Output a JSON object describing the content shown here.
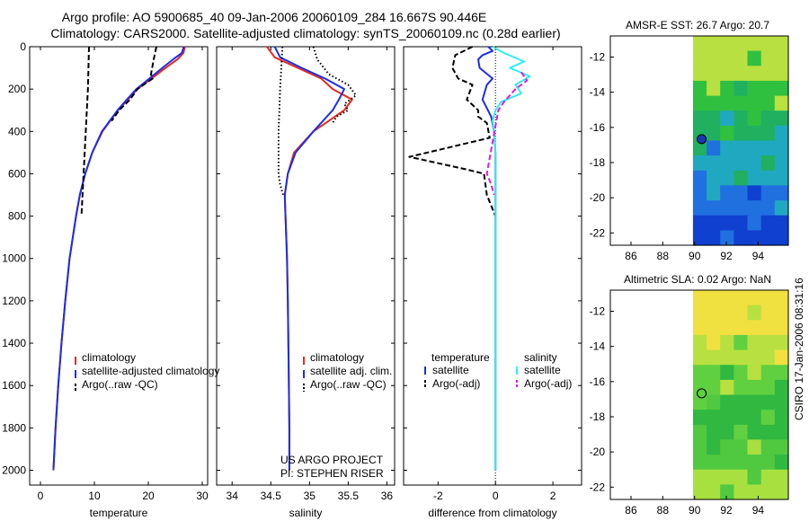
{
  "header": {
    "title_line1": "Argo profile: AO 5900685_40 09-Jan-2006 20060109_284 16.667S 90.446E",
    "title_line2": "Climatology: CARS2000. Satellite-adjusted climatology: synTS_20060109.nc (0.28d earlier)"
  },
  "side_note": "CSIRO 17-Jan-2006 08:31:16",
  "colors": {
    "climatology": "#e8281c",
    "satellite": "#1c2ee8",
    "argo": "#000000",
    "sat_salinity": "#2ff0f0",
    "argo_adj_salinity": "#e01be0"
  },
  "chart_data": [
    {
      "id": "temperature",
      "type": "line",
      "xlabel": "temperature",
      "ylabel": "",
      "xlim": [
        -2,
        31
      ],
      "ylim": [
        2070,
        0
      ],
      "xticks": [
        0,
        10,
        20,
        30
      ],
      "yticks": [
        0,
        200,
        400,
        600,
        800,
        1000,
        1200,
        1400,
        1600,
        1800,
        2000
      ],
      "legend": [
        "climatology",
        "satellite-adjusted climatology",
        "Argo(..raw -QC)"
      ],
      "series": [
        {
          "name": "climatology",
          "style": "solid",
          "color": "#e8281c",
          "depth": [
            0,
            30,
            60,
            100,
            150,
            200,
            250,
            300,
            400,
            500,
            600,
            700,
            800,
            1000,
            1200,
            1400,
            1600,
            1800,
            2000
          ],
          "value": [
            26.8,
            26.5,
            25.4,
            23.2,
            20.6,
            18.0,
            16.2,
            14.4,
            11.5,
            9.6,
            8.3,
            7.3,
            6.6,
            5.4,
            4.6,
            3.9,
            3.3,
            2.8,
            2.4
          ]
        },
        {
          "name": "satellite-adjusted climatology",
          "style": "solid",
          "color": "#1c2ee8",
          "depth": [
            0,
            30,
            60,
            100,
            150,
            200,
            250,
            300,
            400,
            500,
            600,
            700,
            800,
            1000,
            1200,
            1400,
            1600,
            1800,
            2000
          ],
          "value": [
            26.6,
            26.2,
            24.6,
            22.6,
            20.2,
            17.8,
            16.0,
            14.3,
            11.4,
            9.6,
            8.3,
            7.3,
            6.6,
            5.4,
            4.6,
            3.9,
            3.3,
            2.8,
            2.4
          ]
        },
        {
          "name": "Argo(..raw -QC)",
          "style": "dashed",
          "color": "#000000",
          "depth": [
            0,
            100,
            200,
            300,
            400,
            500,
            600,
            700,
            800
          ],
          "value": [
            9.0,
            8.9,
            8.8,
            8.6,
            8.4,
            8.2,
            8.0,
            7.8,
            7.6
          ]
        },
        {
          "name": "Argo(..raw -QC) upper",
          "style": "dashed",
          "color": "#000000",
          "depth": [
            0,
            60,
            130,
            150,
            200,
            250,
            300,
            350
          ],
          "value": [
            21.5,
            21.0,
            20.5,
            20.8,
            18.0,
            16.6,
            14.6,
            13.2
          ]
        }
      ]
    },
    {
      "id": "salinity",
      "type": "line",
      "xlabel": "salinity",
      "ylabel": "",
      "xlim": [
        33.8,
        36.1
      ],
      "ylim": [
        2070,
        0
      ],
      "xticks": [
        34,
        34.5,
        35,
        35.5,
        36
      ],
      "legend": [
        "climatology",
        "satellite adj. clim.",
        "Argo(..raw -QC)"
      ],
      "annotation": [
        "US ARGO PROJECT",
        "PI: STEPHEN RISER"
      ],
      "series": [
        {
          "name": "climatology",
          "style": "solid",
          "color": "#e8281c",
          "depth": [
            0,
            50,
            100,
            150,
            200,
            250,
            300,
            400,
            500,
            600,
            700,
            800,
            1000,
            1200,
            1500,
            1800,
            2000
          ],
          "value": [
            34.45,
            34.55,
            34.85,
            35.15,
            35.3,
            35.55,
            35.45,
            35.05,
            34.8,
            34.72,
            34.68,
            34.69,
            34.71,
            34.72,
            34.73,
            34.74,
            34.74
          ]
        },
        {
          "name": "satellite adj. clim.",
          "style": "solid",
          "color": "#1c2ee8",
          "depth": [
            0,
            50,
            100,
            150,
            200,
            250,
            300,
            400,
            500,
            600,
            700,
            800,
            1000,
            1200,
            1500,
            1800,
            2000
          ],
          "value": [
            34.55,
            34.62,
            34.9,
            35.2,
            35.45,
            35.38,
            35.3,
            35.05,
            34.82,
            34.72,
            34.68,
            34.69,
            34.71,
            34.72,
            34.73,
            34.74,
            34.74
          ]
        },
        {
          "name": "Argo(..raw -QC)",
          "style": "dotted",
          "color": "#000000",
          "depth": [
            0,
            200,
            400,
            600,
            650,
            700
          ],
          "value": [
            34.65,
            34.62,
            34.6,
            34.6,
            34.62,
            34.66
          ]
        },
        {
          "name": "Argo(..raw -QC) upper",
          "style": "dotted",
          "color": "#000000",
          "depth": [
            0,
            60,
            130,
            180,
            230,
            270,
            300,
            330,
            360
          ],
          "value": [
            35.05,
            35.1,
            35.25,
            35.5,
            35.6,
            35.45,
            35.5,
            35.35,
            35.3
          ]
        }
      ]
    },
    {
      "id": "difference",
      "type": "line",
      "xlabel": "difference from climatology",
      "ylabel": "",
      "xlim": [
        -3.2,
        3.0
      ],
      "ylim": [
        2070,
        0
      ],
      "xticks": [
        -2,
        0,
        2
      ],
      "legend": [
        "temperature",
        "satellite",
        "Argo(-adj)",
        "salinity",
        "satellite",
        "Argo(-adj)"
      ],
      "series": [
        {
          "name": "temperature satellite",
          "style": "solid",
          "color": "#1c2ee8",
          "depth": [
            0,
            20,
            40,
            60,
            100,
            150,
            180,
            250,
            330,
            400,
            500,
            700,
            2000
          ],
          "value": [
            -0.25,
            -0.1,
            -0.45,
            -0.6,
            -0.55,
            -0.1,
            -0.3,
            -0.45,
            -0.15,
            -0.05,
            0.0,
            0.0,
            0.0
          ]
        },
        {
          "name": "temperature Argo(-adj)",
          "style": "dashed",
          "color": "#000000",
          "depth": [
            0,
            40,
            100,
            150,
            180,
            250,
            300,
            330,
            360,
            430,
            520,
            580,
            600,
            700,
            800
          ],
          "value": [
            -0.8,
            -1.4,
            -1.5,
            -1.3,
            -0.8,
            -1.0,
            -0.6,
            -0.6,
            -0.3,
            -0.2,
            -3.0,
            -1.0,
            -0.4,
            -0.3,
            0.0
          ]
        },
        {
          "name": "salinity satellite",
          "style": "solid",
          "color": "#2ff0f0",
          "depth": [
            0,
            30,
            70,
            100,
            140,
            180,
            220,
            260,
            300,
            350,
            400,
            500,
            700,
            1000,
            2000
          ],
          "value": [
            -0.1,
            0.3,
            1.0,
            0.5,
            1.2,
            0.7,
            0.9,
            0.2,
            0.0,
            -0.1,
            -0.05,
            0.0,
            0.0,
            0.0,
            0.0
          ]
        },
        {
          "name": "salinity Argo(-adj)",
          "style": "dashed",
          "color": "#e01be0",
          "depth": [
            120,
            160,
            200,
            230,
            260,
            300,
            600,
            650,
            700
          ],
          "value": [
            0.9,
            1.1,
            0.7,
            0.5,
            0.3,
            0.1,
            -0.3,
            -0.15,
            -0.05
          ]
        }
      ]
    },
    {
      "id": "amsr_sst",
      "type": "heatmap",
      "title": "AMSR-E SST: 26.7  Argo: 20.7",
      "xlim": [
        84.7,
        95.9
      ],
      "ylim": [
        -22.7,
        -10.8
      ],
      "xticks": [
        86,
        88,
        90,
        92,
        94
      ],
      "yticks": [
        -12,
        -14,
        -16,
        -18,
        -20,
        -22
      ],
      "data_xrange": [
        89.9,
        95.9
      ],
      "marker": {
        "lon": 90.446,
        "lat": -16.667,
        "filled": true
      },
      "colors_top_to_bottom": [
        "#b8e040",
        "#30c040",
        "#20b060",
        "#20a8c0",
        "#2070e0",
        "#1040d0"
      ]
    },
    {
      "id": "altimetric_sla",
      "type": "heatmap",
      "title": "Altimetric SLA: 0.02  Argo: NaN",
      "xlim": [
        84.7,
        95.9
      ],
      "ylim": [
        -22.7,
        -10.8
      ],
      "xticks": [
        86,
        88,
        90,
        92,
        94
      ],
      "yticks": [
        -12,
        -14,
        -16,
        -18,
        -20,
        -22
      ],
      "data_xrange": [
        89.9,
        95.9
      ],
      "marker": {
        "lon": 90.446,
        "lat": -16.667,
        "filled": false
      },
      "colors_top_to_bottom": [
        "#f0e040",
        "#b8e040",
        "#60d040",
        "#30b840",
        "#50c840",
        "#a8e040"
      ]
    }
  ]
}
